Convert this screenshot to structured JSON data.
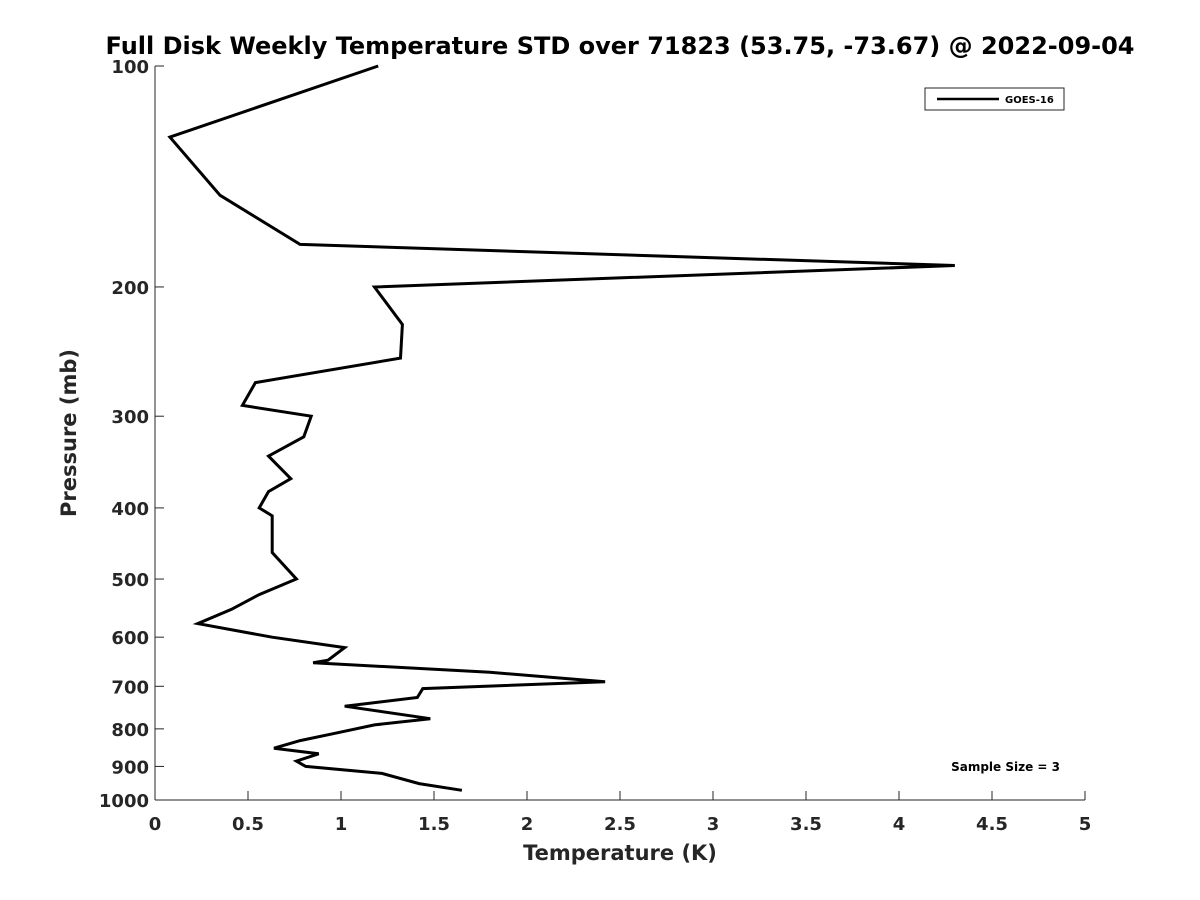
{
  "chart_data": {
    "type": "line",
    "title": "Full Disk Weekly Temperature STD over 71823 (53.75, -73.67) @ 2022-09-04",
    "xlabel": "Temperature (K)",
    "ylabel": "Pressure (mb)",
    "xlim": [
      0,
      5
    ],
    "ylim": [
      1000,
      100
    ],
    "y_scale": "log",
    "y_reversed": true,
    "grid": false,
    "x_ticks": [
      "0",
      "0.5",
      "1",
      "1.5",
      "2",
      "2.5",
      "3",
      "3.5",
      "4",
      "4.5",
      "5"
    ],
    "y_ticks": [
      "100",
      "200",
      "300",
      "400",
      "500",
      "600",
      "700",
      "800",
      "900",
      "1000"
    ],
    "legend_position": "top-right",
    "annotation": "Sample Size = 3",
    "series": [
      {
        "name": "GOES-16",
        "color": "#000000",
        "points": [
          [
            1.2,
            100
          ],
          [
            0.08,
            125
          ],
          [
            0.35,
            150
          ],
          [
            0.78,
            175
          ],
          [
            4.3,
            187
          ],
          [
            1.18,
            200
          ],
          [
            1.33,
            225
          ],
          [
            1.32,
            250
          ],
          [
            0.54,
            270
          ],
          [
            0.47,
            290
          ],
          [
            0.84,
            300
          ],
          [
            0.8,
            320
          ],
          [
            0.61,
            340
          ],
          [
            0.73,
            365
          ],
          [
            0.61,
            380
          ],
          [
            0.56,
            400
          ],
          [
            0.63,
            410
          ],
          [
            0.63,
            460
          ],
          [
            0.76,
            500
          ],
          [
            0.56,
            525
          ],
          [
            0.41,
            550
          ],
          [
            0.23,
            575
          ],
          [
            0.63,
            600
          ],
          [
            1.02,
            620
          ],
          [
            0.93,
            645
          ],
          [
            0.85,
            650
          ],
          [
            1.8,
            670
          ],
          [
            2.42,
            690
          ],
          [
            1.44,
            705
          ],
          [
            1.41,
            725
          ],
          [
            1.02,
            745
          ],
          [
            1.48,
            775
          ],
          [
            1.18,
            790
          ],
          [
            0.98,
            810
          ],
          [
            0.78,
            830
          ],
          [
            0.64,
            850
          ],
          [
            0.88,
            865
          ],
          [
            0.76,
            885
          ],
          [
            0.81,
            900
          ],
          [
            1.22,
            920
          ],
          [
            1.42,
            950
          ],
          [
            1.65,
            970
          ]
        ]
      }
    ]
  }
}
